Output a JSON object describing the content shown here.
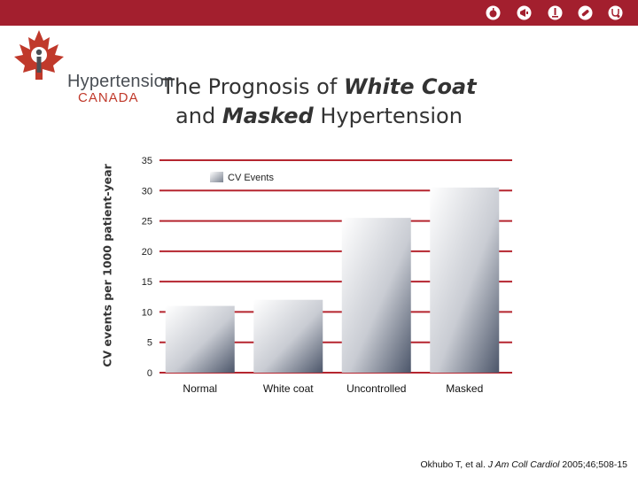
{
  "header": {
    "icons": [
      "apple-icon",
      "megaphone-icon",
      "microscope-icon",
      "pill-icon",
      "stethoscope-icon"
    ],
    "bar_color": "#a31f2e"
  },
  "logo": {
    "line1": "Hypertension",
    "line2": "CANADA"
  },
  "slide": {
    "title_part1": "The Prognosis of ",
    "title_italic1": "White Coat",
    "title_part2": "and ",
    "title_italic2": "Masked",
    "title_part3": " Hypertension"
  },
  "citation": {
    "text1": "Okhubo T, et al. ",
    "journal": "J Am Coll Cardiol",
    "text2": " 2005;46;508-15"
  },
  "chart_data": {
    "type": "bar",
    "categories": [
      "Normal",
      "White coat",
      "Uncontrolled",
      "Masked"
    ],
    "series": [
      {
        "name": "CV Events",
        "values": [
          11,
          12,
          25.5,
          30.5
        ]
      }
    ],
    "xlabel": "",
    "ylabel": "CV events per 1000 patient-year",
    "ylim": [
      0,
      35
    ],
    "yticks": [
      0,
      5,
      10,
      15,
      20,
      25,
      30,
      35
    ],
    "grid": true,
    "grid_color": "#b5252f",
    "legend_position": "top-center"
  }
}
